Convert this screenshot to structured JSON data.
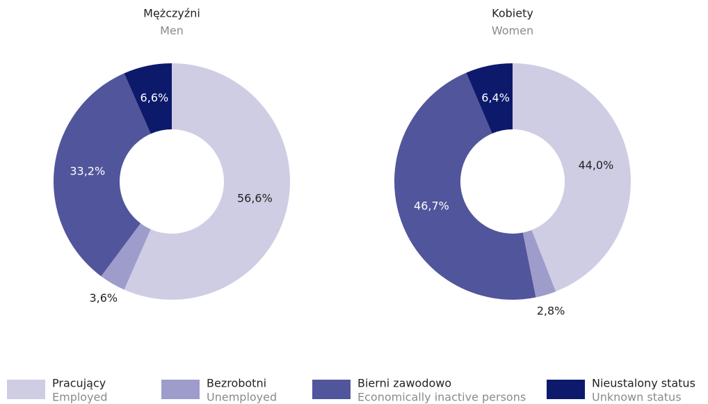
{
  "chart_data": [
    {
      "type": "donut",
      "title": "Mężczyźni",
      "subtitle": "Men",
      "values": [
        56.6,
        3.6,
        33.2,
        6.6
      ],
      "value_labels": [
        "56,6%",
        "3,6%",
        "33,2%",
        "6,6%"
      ],
      "colors": [
        "#cfcde4",
        "#9e9ccb",
        "#51559b",
        "#0d1a6b"
      ]
    },
    {
      "type": "donut",
      "title": "Kobiety",
      "subtitle": "Women",
      "values": [
        44.0,
        2.8,
        46.7,
        6.4
      ],
      "value_labels": [
        "44,0%",
        "2,8%",
        "46,7%",
        "6,4%"
      ],
      "colors": [
        "#cfcde4",
        "#9e9ccb",
        "#51559b",
        "#0d1a6b"
      ]
    }
  ],
  "legend": [
    {
      "label": "Pracujący",
      "sublabel": "Employed"
    },
    {
      "label": "Bezrobotni",
      "sublabel": "Unemployed"
    },
    {
      "label": "Bierni zawodowo",
      "sublabel": "Economically inactive persons"
    },
    {
      "label": "Nieustalony status",
      "sublabel": "Unknown status"
    }
  ]
}
